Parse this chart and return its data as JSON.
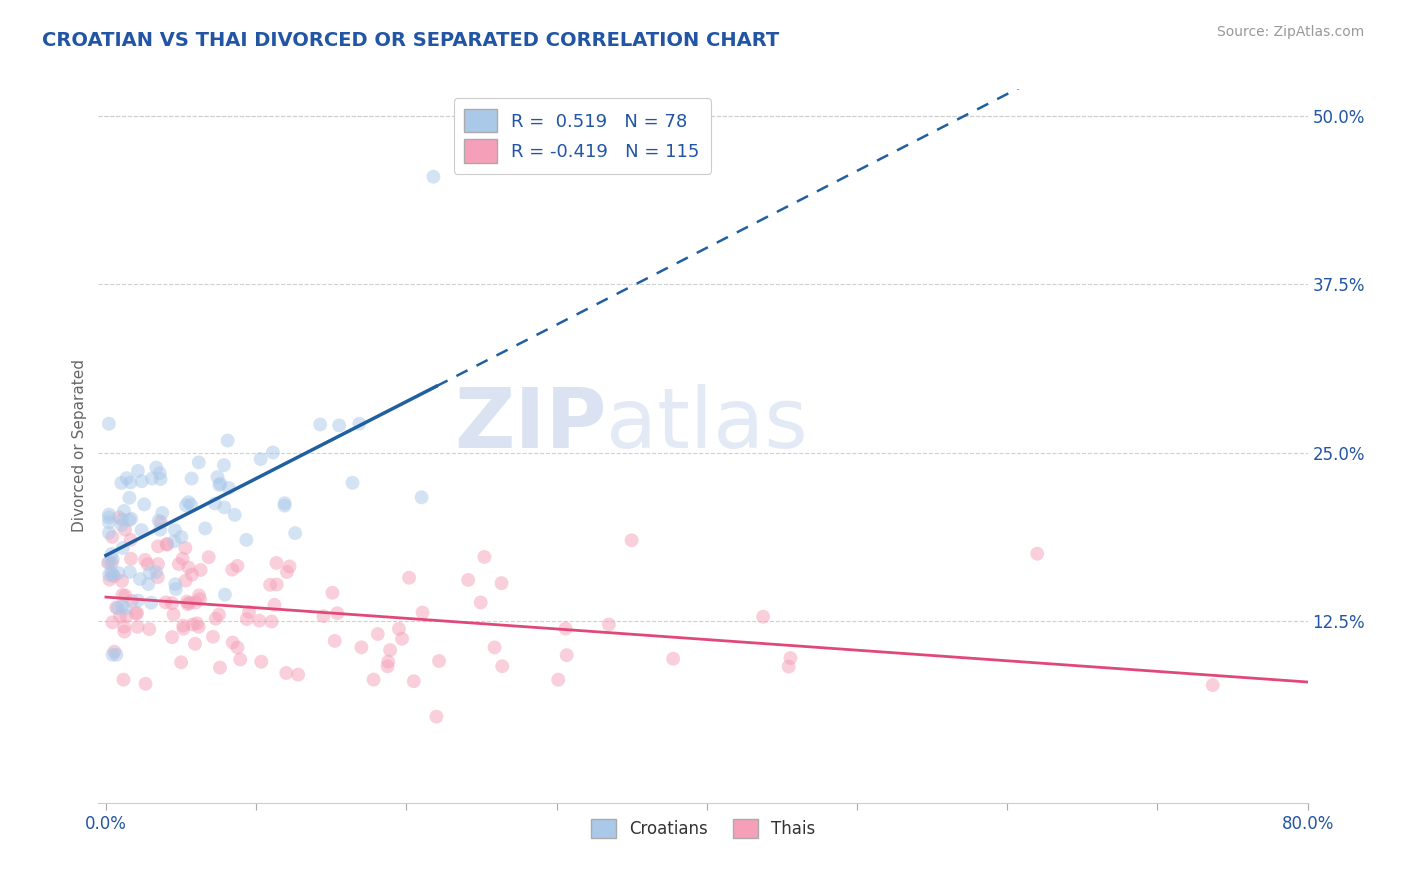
{
  "title": "CROATIAN VS THAI DIVORCED OR SEPARATED CORRELATION CHART",
  "source": "Source: ZipAtlas.com",
  "ylabel": "Divorced or Separated",
  "xmin": -0.005,
  "xmax": 0.8,
  "ymin": -0.01,
  "ymax": 0.52,
  "xtick_positions": [
    0.0,
    0.1,
    0.2,
    0.3,
    0.4,
    0.5,
    0.6,
    0.7,
    0.8
  ],
  "xtick_labels": [
    "0.0%",
    "",
    "",
    "",
    "",
    "",
    "",
    "",
    "80.0%"
  ],
  "ytick_positions": [
    0.125,
    0.25,
    0.375,
    0.5
  ],
  "ytick_labels": [
    "12.5%",
    "25.0%",
    "37.5%",
    "50.0%"
  ],
  "croatian_R": 0.519,
  "croatian_N": 78,
  "thai_R": -0.419,
  "thai_N": 115,
  "croatian_color": "#aac8e8",
  "croatian_line_color": "#2060a0",
  "croatian_line_solid_end": 0.22,
  "thai_color": "#f5a0b8",
  "thai_line_color": "#e04878",
  "legend_label_1": "Croatians",
  "legend_label_2": "Thais",
  "watermark_zip": "ZIP",
  "watermark_atlas": "atlas",
  "title_color": "#2255a4",
  "title_fontsize": 14,
  "axis_tick_color": "#2255a4",
  "grid_color": "#d0d0d0",
  "background_color": "#ffffff",
  "scatter_alpha": 0.5,
  "scatter_size": 100
}
